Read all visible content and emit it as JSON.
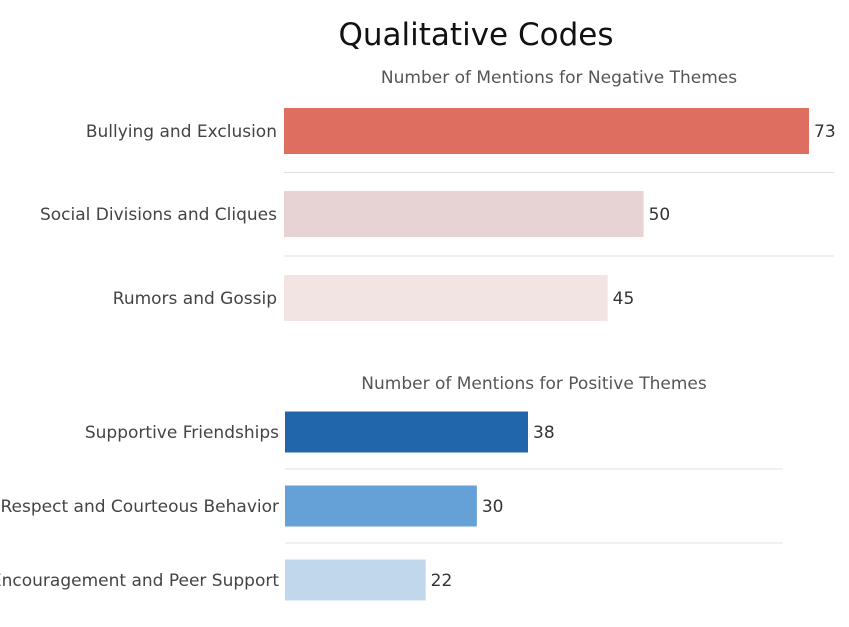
{
  "chart_data": {
    "type": "bar",
    "orientation": "horizontal",
    "title": "Qualitative Codes",
    "panels": [
      {
        "subtitle": "Number of Mentions for Negative Themes",
        "categories": [
          "Bullying and Exclusion",
          "Social Divisions and Cliques",
          "Rumors and Gossip"
        ],
        "values": [
          73,
          50,
          45
        ],
        "colors": [
          "#de6e60",
          "#e8d3d4",
          "#f3e4e4"
        ]
      },
      {
        "subtitle": "Number of Mentions for Positive Themes",
        "categories": [
          "Supportive Friendships",
          "Respect and Courteous Behavior",
          "Encouragement and Peer Support"
        ],
        "values": [
          38,
          30,
          22
        ],
        "colors": [
          "#2165aa",
          "#65a0d6",
          "#c1d7ec"
        ]
      }
    ],
    "xlim": [
      0,
      73
    ],
    "grid": false,
    "legend": "none"
  }
}
